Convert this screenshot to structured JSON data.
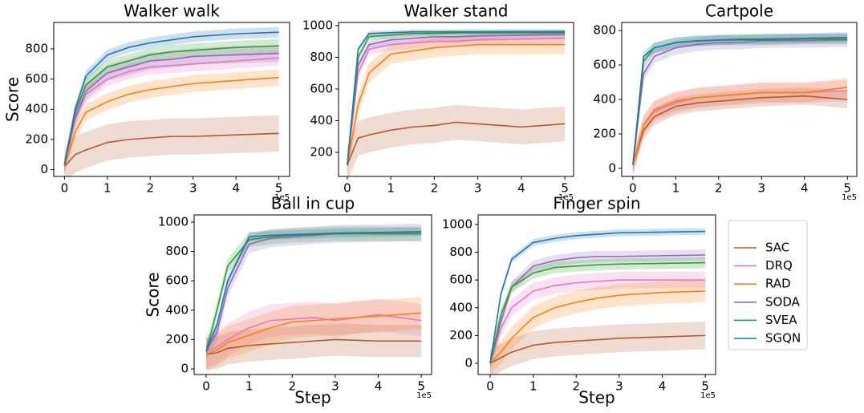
{
  "chart_data": [
    {
      "type": "line",
      "title": "Walker walk",
      "ylabel": "Score",
      "x_offset": "1e5",
      "x": [
        0,
        0.25,
        0.5,
        1,
        1.5,
        2,
        2.5,
        3,
        4,
        5
      ],
      "xlim": [
        -0.25,
        5.25
      ],
      "xticks": [
        0,
        1,
        2,
        3,
        4,
        5
      ],
      "ylim": [
        -45,
        975
      ],
      "yticks": [
        0,
        200,
        400,
        600,
        800
      ],
      "series": [
        {
          "name": "SAC",
          "color": "#b3592e",
          "band": 120,
          "values": [
            20,
            100,
            130,
            180,
            200,
            210,
            220,
            220,
            230,
            240
          ]
        },
        {
          "name": "DRQ",
          "color": "#e377c2",
          "band": 50,
          "values": [
            30,
            330,
            500,
            600,
            650,
            680,
            690,
            700,
            720,
            740
          ]
        },
        {
          "name": "RAD",
          "color": "#ff7f0e",
          "band": 55,
          "values": [
            20,
            250,
            380,
            450,
            500,
            530,
            550,
            570,
            590,
            610
          ]
        },
        {
          "name": "SODA",
          "color": "#9467bd",
          "band": 55,
          "values": [
            30,
            350,
            520,
            640,
            680,
            720,
            730,
            750,
            760,
            770
          ]
        },
        {
          "name": "SVEA",
          "color": "#2ca02c",
          "band": 45,
          "values": [
            30,
            380,
            560,
            680,
            720,
            760,
            780,
            790,
            810,
            820
          ]
        },
        {
          "name": "SGQN",
          "color": "#1f77b4",
          "band": 35,
          "values": [
            30,
            400,
            620,
            760,
            810,
            840,
            860,
            880,
            900,
            910
          ]
        }
      ]
    },
    {
      "type": "line",
      "title": "Walker stand",
      "x_offset": "1e5",
      "x": [
        0,
        0.25,
        0.5,
        1,
        1.5,
        2,
        2.5,
        3,
        4,
        5
      ],
      "xlim": [
        -0.2,
        5.2
      ],
      "xticks": [
        0,
        1,
        2,
        3,
        4,
        5
      ],
      "ylim": [
        48,
        1020
      ],
      "yticks": [
        200,
        400,
        600,
        800,
        1000
      ],
      "series": [
        {
          "name": "SAC",
          "color": "#b3592e",
          "band": 110,
          "values": [
            120,
            290,
            310,
            340,
            360,
            370,
            390,
            380,
            360,
            380
          ]
        },
        {
          "name": "DRQ",
          "color": "#e377c2",
          "band": 35,
          "values": [
            120,
            700,
            850,
            880,
            890,
            900,
            900,
            910,
            915,
            920
          ]
        },
        {
          "name": "RAD",
          "color": "#ff7f0e",
          "band": 60,
          "values": [
            120,
            500,
            700,
            820,
            840,
            860,
            870,
            880,
            880,
            880
          ]
        },
        {
          "name": "SODA",
          "color": "#9467bd",
          "band": 30,
          "values": [
            120,
            750,
            880,
            910,
            920,
            930,
            930,
            935,
            940,
            945
          ]
        },
        {
          "name": "SVEA",
          "color": "#2ca02c",
          "band": 20,
          "values": [
            120,
            800,
            930,
            940,
            950,
            950,
            955,
            955,
            955,
            955
          ]
        },
        {
          "name": "SGQN",
          "color": "#1f77b4",
          "band": 15,
          "values": [
            120,
            850,
            950,
            955,
            960,
            960,
            960,
            960,
            960,
            960
          ]
        }
      ]
    },
    {
      "type": "line",
      "title": "Cartpole",
      "x_offset": "1e5",
      "x": [
        0,
        0.25,
        0.5,
        1,
        1.5,
        2,
        2.5,
        3,
        4,
        5
      ],
      "xlim": [
        -0.26,
        5.22
      ],
      "xticks": [
        0,
        1,
        2,
        3,
        4,
        5
      ],
      "ylim": [
        -47,
        847
      ],
      "yticks": [
        0,
        200,
        400,
        600,
        800
      ],
      "series": [
        {
          "name": "SAC",
          "color": "#b3592e",
          "band": 50,
          "values": [
            20,
            220,
            300,
            360,
            380,
            390,
            400,
            410,
            420,
            400
          ]
        },
        {
          "name": "DRQ",
          "color": "#e377c2",
          "band": 60,
          "values": [
            20,
            250,
            330,
            380,
            410,
            420,
            430,
            440,
            440,
            450
          ]
        },
        {
          "name": "RAD",
          "color": "#ff7f0e",
          "band": 55,
          "values": [
            20,
            250,
            340,
            390,
            410,
            420,
            430,
            440,
            440,
            470
          ]
        },
        {
          "name": "SODA",
          "color": "#9467bd",
          "band": 40,
          "values": [
            20,
            550,
            650,
            700,
            720,
            730,
            730,
            740,
            740,
            745
          ]
        },
        {
          "name": "SVEA",
          "color": "#2ca02c",
          "band": 30,
          "values": [
            20,
            620,
            700,
            730,
            740,
            745,
            745,
            745,
            750,
            750
          ]
        },
        {
          "name": "SGQN",
          "color": "#1f77b4",
          "band": 30,
          "values": [
            20,
            650,
            700,
            730,
            740,
            745,
            750,
            750,
            755,
            760
          ]
        }
      ]
    },
    {
      "type": "line",
      "title": "Ball in cup",
      "ylabel": "Score",
      "xlabel": "Step",
      "x_offset": "1e5",
      "x": [
        0,
        0.25,
        0.5,
        1,
        1.5,
        2,
        2.5,
        3,
        4,
        5
      ],
      "xlim": [
        -0.28,
        5.24
      ],
      "xticks": [
        0,
        1,
        2,
        3,
        4,
        5
      ],
      "ylim": [
        -38,
        1049
      ],
      "yticks": [
        0,
        200,
        400,
        600,
        800,
        1000
      ],
      "series": [
        {
          "name": "SAC",
          "color": "#b3592e",
          "band": 110,
          "values": [
            100,
            110,
            140,
            160,
            170,
            180,
            190,
            200,
            190,
            190
          ]
        },
        {
          "name": "DRQ",
          "color": "#e377c2",
          "band": 110,
          "values": [
            120,
            150,
            200,
            280,
            330,
            340,
            350,
            330,
            370,
            330
          ]
        },
        {
          "name": "RAD",
          "color": "#ff7f0e",
          "band": 110,
          "values": [
            100,
            130,
            180,
            230,
            280,
            320,
            330,
            340,
            360,
            380
          ]
        },
        {
          "name": "SODA",
          "color": "#9467bd",
          "band": 60,
          "values": [
            120,
            250,
            550,
            850,
            890,
            900,
            910,
            920,
            925,
            930
          ]
        },
        {
          "name": "SVEA",
          "color": "#2ca02c",
          "band": 50,
          "values": [
            120,
            400,
            700,
            880,
            900,
            910,
            915,
            920,
            920,
            920
          ]
        },
        {
          "name": "SGQN",
          "color": "#1f77b4",
          "band": 30,
          "values": [
            120,
            300,
            600,
            900,
            910,
            915,
            920,
            925,
            930,
            935
          ]
        }
      ]
    },
    {
      "type": "line",
      "title": "Finger spin",
      "xlabel": "Step",
      "x_offset": "1e5",
      "x": [
        0,
        0.25,
        0.5,
        1,
        1.5,
        2,
        2.5,
        3,
        4,
        5
      ],
      "xlim": [
        -0.28,
        5.24
      ],
      "xticks": [
        0,
        1,
        2,
        3,
        4,
        5
      ],
      "ylim": [
        -81,
        1069
      ],
      "yticks": [
        0,
        200,
        400,
        600,
        800,
        1000
      ],
      "series": [
        {
          "name": "SAC",
          "color": "#b3592e",
          "band": 100,
          "values": [
            0,
            40,
            80,
            130,
            150,
            160,
            170,
            180,
            190,
            200
          ]
        },
        {
          "name": "DRQ",
          "color": "#e377c2",
          "band": 60,
          "values": [
            0,
            250,
            400,
            520,
            560,
            580,
            590,
            600,
            600,
            600
          ]
        },
        {
          "name": "RAD",
          "color": "#ff7f0e",
          "band": 80,
          "values": [
            0,
            80,
            180,
            330,
            400,
            440,
            470,
            490,
            510,
            520
          ]
        },
        {
          "name": "SODA",
          "color": "#9467bd",
          "band": 40,
          "values": [
            0,
            300,
            550,
            700,
            740,
            760,
            770,
            770,
            775,
            780
          ]
        },
        {
          "name": "SVEA",
          "color": "#2ca02c",
          "band": 40,
          "values": [
            0,
            350,
            550,
            650,
            690,
            700,
            710,
            715,
            720,
            725
          ]
        },
        {
          "name": "SGQN",
          "color": "#1f77b4",
          "band": 25,
          "values": [
            0,
            500,
            750,
            870,
            900,
            920,
            930,
            940,
            945,
            950
          ]
        }
      ]
    }
  ]
}
